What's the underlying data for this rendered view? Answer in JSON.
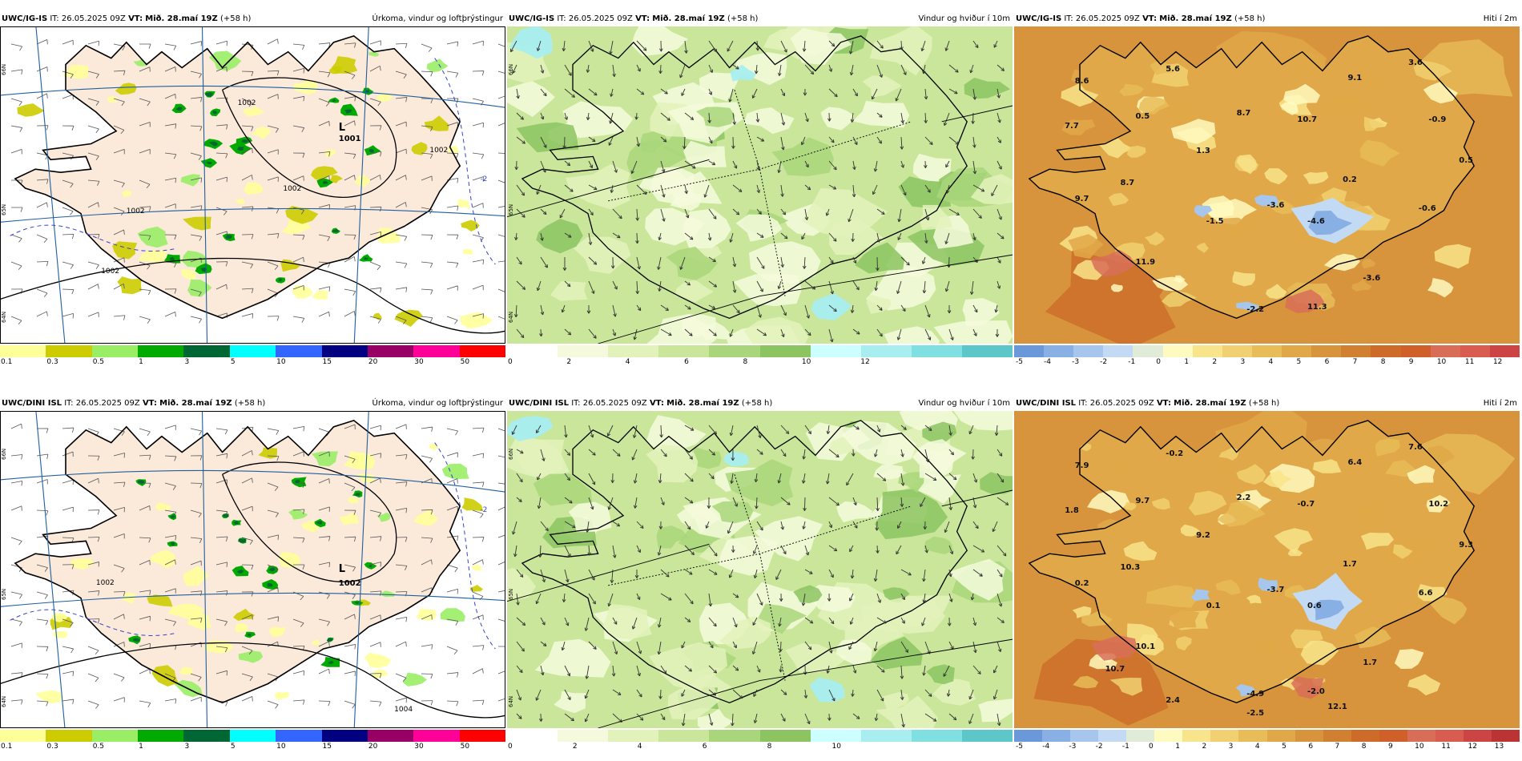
{
  "panels": [
    {
      "model": "UWC/IG-IS",
      "it_label": "IT:",
      "it_value": "26.05.2025 09Z",
      "vt_label": "VT:",
      "vt_value": "Mið. 28.maí 19Z",
      "lead": "(+58 h)",
      "product": "Úrkoma, vindur og loftþrýstingur",
      "type": "precip",
      "colorbar": {
        "colors": [
          "#ffff99",
          "#cccc00",
          "#99ee66",
          "#00aa00",
          "#006633",
          "#00ffff",
          "#3366ff",
          "#000080",
          "#990066",
          "#ff0099",
          "#ff0000"
        ],
        "ticks": [
          "0.1",
          "0.3",
          "0.5",
          "1",
          "3",
          "5",
          "10",
          "15",
          "20",
          "30",
          "50"
        ]
      },
      "map_labels": [
        {
          "text": "L",
          "kind": "low"
        },
        {
          "text": "1001",
          "kind": "low"
        },
        {
          "text": "1002",
          "kind": "isobar"
        },
        {
          "text": "1002",
          "kind": "isobar"
        },
        {
          "text": "1002",
          "kind": "isobar"
        },
        {
          "text": "1002",
          "kind": "isobar"
        },
        {
          "text": "1002",
          "kind": "isobar"
        },
        {
          "text": "-2",
          "kind": "temp"
        }
      ],
      "lat_labels": [
        "66N",
        "65N",
        "64N"
      ]
    },
    {
      "model": "UWC/IG-IS",
      "it_label": "IT:",
      "it_value": "26.05.2025 09Z",
      "vt_label": "VT:",
      "vt_value": "Mið. 28.maí 19Z",
      "lead": "(+58 h)",
      "product": "Vindur og hviður í 10m",
      "type": "wind",
      "colorbar": {
        "colors": [
          "#ffffff",
          "#f5fadc",
          "#e3f2bb",
          "#c9e69a",
          "#a9d67a",
          "#8cc461",
          "#ccffff",
          "#a8eef0",
          "#80dfe0",
          "#5cc6c8"
        ],
        "ticks": [
          "0",
          "2",
          "4",
          "6",
          "8",
          "10",
          "12"
        ]
      },
      "map_labels": [],
      "lat_labels": [
        "66N",
        "65N",
        "64N"
      ]
    },
    {
      "model": "UWC/IG-IS",
      "it_label": "IT:",
      "it_value": "26.05.2025 09Z",
      "vt_label": "VT:",
      "vt_value": "Mið. 28.maí 19Z",
      "lead": "(+58 h)",
      "product": "Hiti í 2m",
      "type": "temp",
      "colorbar": {
        "colors": [
          "#6b98d8",
          "#88b0e4",
          "#a6c6ee",
          "#c3daf5",
          "#e0ecd8",
          "#fffac0",
          "#f8e48a",
          "#f0d070",
          "#e8bc58",
          "#e0a848",
          "#d8943c",
          "#d08030",
          "#cc6c28",
          "#d0602a",
          "#d86e58",
          "#d85d50",
          "#cc4444"
        ],
        "ticks": [
          "-5",
          "-4",
          "-3",
          "-2",
          "-1",
          "0",
          "1",
          "2",
          "3",
          "4",
          "5",
          "6",
          "7",
          "8",
          "9",
          "10",
          "11",
          "12"
        ]
      },
      "values": [
        "8.6",
        "5.6",
        "9.1",
        "3.6",
        "7.7",
        "0.5",
        "8.7",
        "10.7",
        "-0.9",
        "1.3",
        "0.5",
        "8.7",
        "0.2",
        "9.7",
        "-1.5",
        "-3.6",
        "-4.6",
        "-0.6",
        "11.9",
        "-3.6",
        "-2.2",
        "11.3"
      ],
      "lat_labels": []
    },
    {
      "model": "UWC/DINI ISL",
      "it_label": "IT:",
      "it_value": "26.05.2025 09Z",
      "vt_label": "VT:",
      "vt_value": "Mið. 28.maí 19Z",
      "lead": "(+58 h)",
      "product": "Úrkoma, vindur og loftþrýstingur",
      "type": "precip",
      "colorbar": {
        "colors": [
          "#ffff99",
          "#cccc00",
          "#99ee66",
          "#00aa00",
          "#006633",
          "#00ffff",
          "#3366ff",
          "#000080",
          "#990066",
          "#ff0099",
          "#ff0000"
        ],
        "ticks": [
          "0.1",
          "0.3",
          "0.5",
          "1",
          "3",
          "5",
          "10",
          "15",
          "20",
          "30",
          "50"
        ]
      },
      "map_labels": [
        {
          "text": "L",
          "kind": "low"
        },
        {
          "text": "1002",
          "kind": "low"
        },
        {
          "text": "1002",
          "kind": "isobar"
        },
        {
          "text": "1004",
          "kind": "isobar"
        },
        {
          "text": "-2",
          "kind": "temp"
        }
      ],
      "lat_labels": [
        "66N",
        "65N",
        "64N"
      ]
    },
    {
      "model": "UWC/DINI ISL",
      "it_label": "IT:",
      "it_value": "26.05.2025 09Z",
      "vt_label": "VT:",
      "vt_value": "Mið. 28.maí 19Z",
      "lead": "(+58 h)",
      "product": "Vindur og hviður í 10m",
      "type": "wind",
      "colorbar": {
        "colors": [
          "#ffffff",
          "#f5fadc",
          "#e3f2bb",
          "#c9e69a",
          "#a9d67a",
          "#8cc461",
          "#ccffff",
          "#a8eef0",
          "#80dfe0",
          "#5cc6c8"
        ],
        "ticks": [
          "0",
          "2",
          "4",
          "6",
          "8",
          "10"
        ]
      },
      "map_labels": [],
      "lat_labels": [
        "66N",
        "65N",
        "64N"
      ]
    },
    {
      "model": "UWC/DINI ISL",
      "it_label": "IT:",
      "it_value": "26.05.2025 09Z",
      "vt_label": "VT:",
      "vt_value": "Mið. 28.maí 19Z",
      "lead": "(+58 h)",
      "product": "Hiti í 2m",
      "type": "temp",
      "colorbar": {
        "colors": [
          "#6b98d8",
          "#88b0e4",
          "#a6c6ee",
          "#c3daf5",
          "#e0ecd8",
          "#fffac0",
          "#f8e48a",
          "#f0d070",
          "#e8bc58",
          "#e0a848",
          "#d8943c",
          "#d08030",
          "#cc6c28",
          "#d0602a",
          "#d86e58",
          "#d85d50",
          "#cc4444",
          "#bb3333"
        ],
        "ticks": [
          "-5",
          "-4",
          "-3",
          "-2",
          "-1",
          "0",
          "1",
          "2",
          "3",
          "4",
          "5",
          "6",
          "7",
          "8",
          "9",
          "10",
          "11",
          "12",
          "13"
        ]
      },
      "values": [
        "7.9",
        "-0.2",
        "6.4",
        "7.6",
        "1.8",
        "9.7",
        "2.2",
        "-0.7",
        "10.2",
        "9.2",
        "9.3",
        "10.3",
        "1.7",
        "0.2",
        "0.1",
        "-3.7",
        "0.6",
        "6.6",
        "10.1",
        "1.7",
        "-4.9",
        "-2.0",
        "2.4",
        "10.7",
        "12.1",
        "-2.5"
      ],
      "lat_labels": []
    }
  ]
}
